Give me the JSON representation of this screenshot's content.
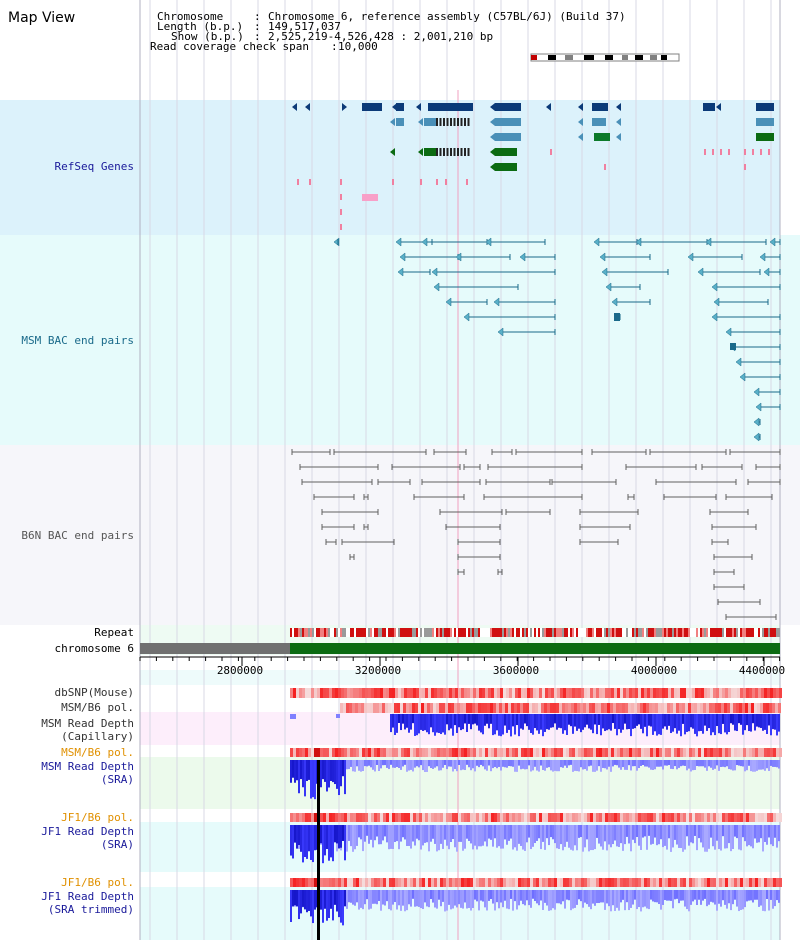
{
  "view_title": "Map View",
  "header": {
    "chromosome_key": "Chromosome",
    "chromosome_val": "Chromosome 6, reference assembly (C57BL/6J) (Build 37)",
    "length_key": "Length (b.p.)",
    "length_val": "149,517,037",
    "show_key": "Show (b.p.)",
    "show_val": "2,525,219-4,526,428 : 2,001,210 bp",
    "span_key": "Read coverage check span",
    "span_val": "10,000"
  },
  "track_labels": {
    "refseq": "RefSeq Genes",
    "msm_bac": "MSM BAC end pairs",
    "b6n_bac": "B6N BAC end pairs",
    "repeat": "Repeat",
    "chromosome": "chromosome 6",
    "dbsnp": "dbSNP(Mouse)",
    "msm_b6_pol_1": "MSM/B6 pol.",
    "msm_depth_cap": "MSM Read Depth\n(Capillary)",
    "msm_b6_pol_2": "MSM/B6 pol.",
    "msm_depth_sra": "MSM Read Depth\n(SRA)",
    "jf1_b6_pol_1": "JF1/B6 pol.",
    "jf1_depth_sra": "JF1 Read Depth\n(SRA)",
    "jf1_b6_pol_2": "JF1/B6 pol.",
    "jf1_depth_trim": "JF1 Read Depth\n(SRA trimmed)"
  },
  "ruler": {
    "ticks": [
      "2800000",
      "3200000",
      "3600000",
      "4000000",
      "4400000"
    ]
  },
  "colors": {
    "refseq_bg": "#dcf2fb",
    "msm_bac_bg": "#e6fbfb",
    "b6n_bac_bg": "#f6f6fa",
    "label_blue": "#1a1a9a",
    "label_teal": "#1a6a8a",
    "label_orange": "#e09000",
    "gene_navy": "#0b3a78",
    "gene_steel": "#4a90b8",
    "gene_green": "#0b6b12",
    "depth_blue": "#2020ff",
    "snp_red": "#e82020",
    "chrom_green": "#0b6b12",
    "chrom_gray": "#707070"
  }
}
